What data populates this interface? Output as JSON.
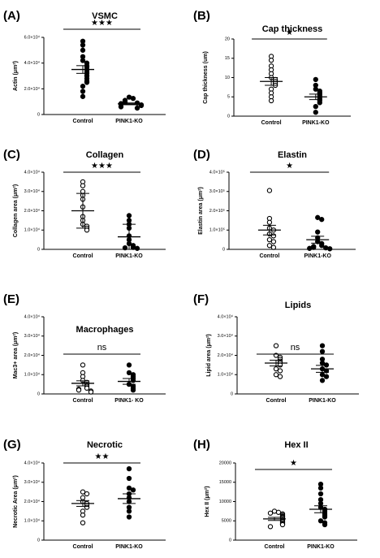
{
  "chart_data": [
    {
      "type": "scatter",
      "panel": "(A)",
      "title": "VSMC",
      "ylabel": "Actin (μm²)",
      "yticks": [
        "0",
        "2.0×10⁴",
        "4.0×10⁴",
        "6.0×10⁴"
      ],
      "ylim": [
        0,
        60000
      ],
      "categories": [
        "Control",
        "PINK1-KO"
      ],
      "series": [
        {
          "values": [
            57000,
            54000,
            50000,
            45000,
            42000,
            40000,
            38000,
            37000,
            35000,
            33000,
            32000,
            30000,
            28000,
            26000,
            25000,
            22000,
            18000,
            14000
          ]
        },
        {
          "values": [
            13500,
            12500,
            11000,
            10000,
            9500,
            9000,
            8500,
            8000,
            7500,
            7000,
            6000,
            5000
          ]
        }
      ],
      "mean": [
        35000,
        8300
      ],
      "sem": [
        3000,
        700
      ],
      "sd": null,
      "significance": "★★★",
      "control_open": false
    },
    {
      "type": "scatter",
      "panel": "(B)",
      "title": "Cap thickness",
      "ylabel": "Cap thickness (um)",
      "yticks": [
        "0",
        "5",
        "10",
        "15",
        "20"
      ],
      "ylim": [
        0,
        20
      ],
      "categories": [
        "Control",
        "PINK1-KO"
      ],
      "series": [
        {
          "values": [
            15.5,
            14.5,
            13,
            12,
            11,
            10,
            9.5,
            9,
            8.5,
            8,
            7,
            6,
            5,
            4
          ]
        },
        {
          "values": [
            9.5,
            8,
            7,
            6.5,
            6,
            5.5,
            5,
            4.5,
            4,
            3.5,
            2.5,
            1
          ]
        }
      ],
      "mean": [
        9,
        5
      ],
      "sem": [
        1,
        0.7
      ],
      "sd": null,
      "significance": "★",
      "control_open": true
    },
    {
      "type": "scatter",
      "panel": "(C)",
      "title": "Collagen",
      "ylabel": "Collagen area (μm²)",
      "yticks": [
        "0",
        "1.0×10⁴",
        "2.0×10⁴",
        "3.0×10⁴",
        "4.0×10⁴"
      ],
      "ylim": [
        0,
        40000
      ],
      "categories": [
        "Control",
        "PINK1-KO"
      ],
      "series": [
        {
          "values": [
            35000,
            33000,
            30000,
            28000,
            26000,
            22000,
            17000,
            15000,
            13000,
            12000,
            11000,
            10000
          ]
        },
        {
          "values": [
            17500,
            15000,
            13000,
            11000,
            7000,
            5000,
            3000,
            2000,
            1000,
            800,
            500
          ]
        }
      ],
      "mean": [
        20000,
        6500
      ],
      "sem": null,
      "sd": [
        9000,
        6500
      ],
      "significance": "★★★",
      "control_open": true
    },
    {
      "type": "scatter",
      "panel": "(D)",
      "title": "Elastin",
      "ylabel": "Elastin area (μm²)",
      "yticks": [
        "0",
        "1.0×10⁵",
        "2.0×10⁵",
        "3.0×10⁵",
        "4.0×10⁵"
      ],
      "ylim": [
        0,
        400000
      ],
      "categories": [
        "Control",
        "PINK1-KO"
      ],
      "series": [
        {
          "values": [
            305000,
            160000,
            140000,
            110000,
            100000,
            80000,
            70000,
            50000,
            40000,
            20000,
            10000
          ]
        },
        {
          "values": [
            165000,
            155000,
            90000,
            60000,
            40000,
            30000,
            20000,
            15000,
            10000,
            8000,
            5000,
            3000
          ]
        }
      ],
      "mean": [
        100000,
        50000
      ],
      "sem": [
        25000,
        18000
      ],
      "sd": null,
      "significance": "★",
      "control_open": true
    },
    {
      "type": "scatter",
      "panel": "(E)",
      "title": "Macrophages",
      "ylabel": "Mac3+ area (μm²)",
      "yticks": [
        "0",
        "1.0×10⁴",
        "2.0×10⁴",
        "3.0×10⁴",
        "4.0×10⁴"
      ],
      "ylim": [
        0,
        40000
      ],
      "categories": [
        "Control",
        "PINK1- KO"
      ],
      "series": [
        {
          "values": [
            15000,
            11000,
            9000,
            7000,
            6000,
            5000,
            4000,
            3000,
            2500,
            2000,
            1500,
            1000
          ]
        },
        {
          "values": [
            15000,
            11000,
            10000,
            9000,
            8000,
            7000,
            5000,
            4000,
            3000,
            2000
          ]
        }
      ],
      "mean": [
        5500,
        6500
      ],
      "sem": [
        1300,
        1500
      ],
      "sd": null,
      "significance": "ns",
      "control_open": true
    },
    {
      "type": "scatter",
      "panel": "(F)",
      "title": "Lipids",
      "ylabel": "Lipid area (μm²)",
      "yticks": [
        "0",
        "1.0×10⁴",
        "2.0×10⁴",
        "3.0×10⁴",
        "4.0×10⁴"
      ],
      "ylim": [
        0,
        40000
      ],
      "categories": [
        "Control",
        "PINK1-KO"
      ],
      "series": [
        {
          "values": [
            25000,
            20000,
            19000,
            18000,
            17000,
            16000,
            15000,
            13000,
            12000,
            10000,
            9000
          ]
        },
        {
          "values": [
            25000,
            22000,
            18000,
            16000,
            15000,
            13000,
            12000,
            10000,
            9000,
            7000
          ]
        }
      ],
      "mean": [
        16000,
        13000
      ],
      "sem": [
        1500,
        1800
      ],
      "sd": null,
      "significance": "ns",
      "control_open": true
    },
    {
      "type": "scatter",
      "panel": "(G)",
      "title": "Necrotic",
      "ylabel": "Necrotic Area (μm²)",
      "yticks": [
        "0",
        "1.0×10⁴",
        "2.0×10⁴",
        "3.0×10⁴",
        "4.0×10⁴"
      ],
      "ylim": [
        0,
        40000
      ],
      "categories": [
        "Control",
        "PINK1-KO"
      ],
      "series": [
        {
          "values": [
            25000,
            24000,
            22000,
            20000,
            19000,
            18000,
            17000,
            15000,
            13000,
            9000
          ]
        },
        {
          "values": [
            37000,
            32000,
            27000,
            26000,
            24000,
            22000,
            20000,
            17000,
            15000,
            12000
          ]
        }
      ],
      "mean": [
        19000,
        21500
      ],
      "sem": [
        1500,
        2500
      ],
      "sd": null,
      "significance": "★★",
      "control_open": true
    },
    {
      "type": "scatter",
      "panel": "(H)",
      "title": "Hex II",
      "ylabel": "Hex II (μm²)",
      "yticks": [
        "0",
        "5000",
        "10000",
        "15000",
        "20000"
      ],
      "ylim": [
        0,
        20000
      ],
      "categories": [
        "Control",
        "PINK1-KO"
      ],
      "series": [
        {
          "values": [
            7500,
            7200,
            7000,
            6800,
            6500,
            6200,
            6000,
            5800,
            5500,
            5200,
            5000,
            4800,
            4500,
            4200,
            4000,
            3500
          ]
        },
        {
          "values": [
            14500,
            13500,
            12000,
            10500,
            9500,
            8500,
            8000,
            7500,
            7000,
            6500,
            6000,
            5000,
            4500,
            4000
          ]
        }
      ],
      "mean": [
        5500,
        8000
      ],
      "sem": [
        400,
        900
      ],
      "sd": null,
      "significance": "★",
      "control_open": true
    }
  ]
}
